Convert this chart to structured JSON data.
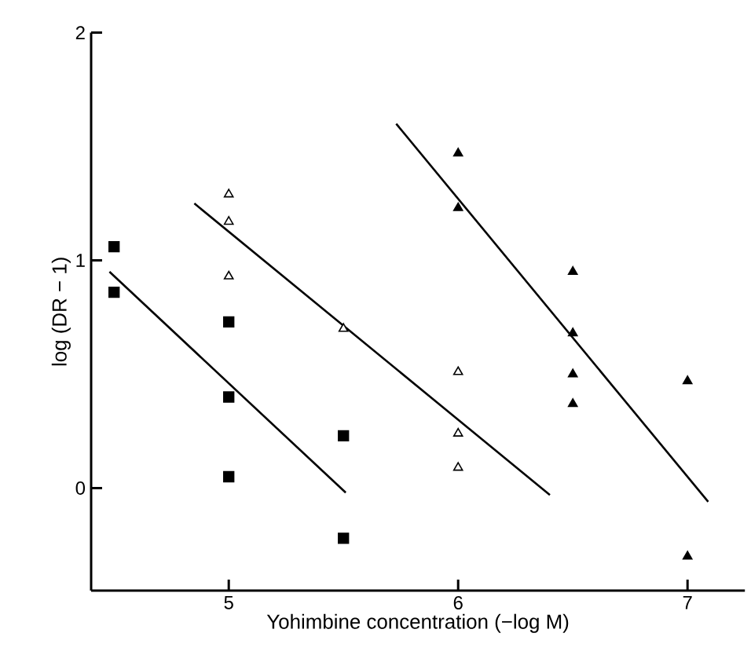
{
  "chart_data": {
    "type": "scatter",
    "xlabel": "Yohimbine concentration (−log M)",
    "ylabel": "log (DR − 1)",
    "xlim": [
      4.4,
      7.25
    ],
    "ylim": [
      -0.45,
      2
    ],
    "xticks": [
      5,
      6,
      7
    ],
    "yticks": [
      0,
      1,
      2
    ],
    "grid": false,
    "series": [
      {
        "marker": "square",
        "color": "#000000",
        "x": [
          4.5,
          4.5,
          5,
          5,
          5,
          5.5,
          5.5
        ],
        "values": [
          1.06,
          0.86,
          0.73,
          0.4,
          0.05,
          0.23,
          -0.22
        ]
      },
      {
        "marker": "triangle",
        "color": "#ffffff",
        "x": [
          5,
          5,
          5,
          5.5,
          6,
          6,
          6
        ],
        "values": [
          1.29,
          1.17,
          0.93,
          0.7,
          0.51,
          0.24,
          0.09
        ]
      },
      {
        "marker": "triangle",
        "color": "#000000",
        "x": [
          6,
          6,
          6.5,
          6.5,
          6.5,
          6.5,
          7,
          7
        ],
        "values": [
          1.47,
          1.23,
          0.95,
          0.68,
          0.5,
          0.37,
          0.47,
          -0.3
        ]
      },
      {
        "type": "line",
        "marker": "none",
        "line_style": "solid",
        "color": "#000000",
        "x": [
          4.48,
          5.51
        ],
        "values": [
          0.95,
          -0.02
        ]
      },
      {
        "type": "line",
        "marker": "none",
        "line_style": "solid",
        "color": "#000000",
        "x": [
          4.85,
          6.4
        ],
        "values": [
          1.25,
          -0.03
        ]
      },
      {
        "type": "line",
        "marker": "none",
        "line_style": "solid",
        "color": "#000000",
        "x": [
          5.73,
          7.09
        ],
        "values": [
          1.6,
          -0.06
        ]
      }
    ]
  }
}
